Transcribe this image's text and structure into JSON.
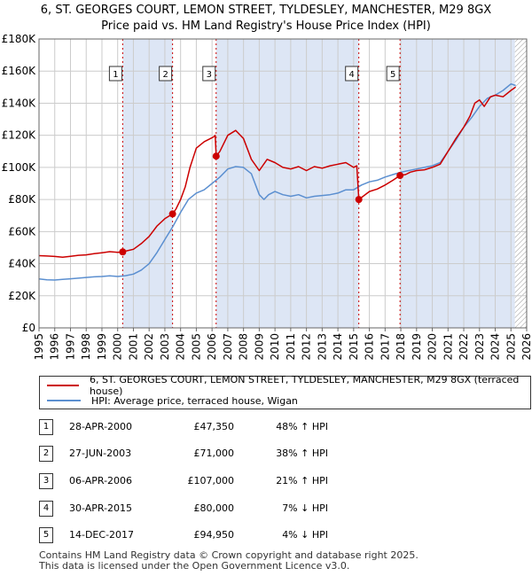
{
  "header": {
    "title_line1": "6, ST. GEORGES COURT, LEMON STREET, TYLDESLEY, MANCHESTER, M29 8GX",
    "title_line2": "Price paid vs. HM Land Registry's House Price Index (HPI)"
  },
  "colors": {
    "property_line": "#cc0000",
    "hpi_line": "#5b8fd0",
    "shade": "#dde6f5",
    "grid": "#cccccc"
  },
  "chart_data": {
    "type": "line",
    "x_range": [
      1995,
      2026
    ],
    "ylim": [
      0,
      180000
    ],
    "y_ticks": [
      0,
      20000,
      40000,
      60000,
      80000,
      100000,
      120000,
      140000,
      160000,
      180000
    ],
    "y_tick_labels": [
      "£0",
      "£20K",
      "£40K",
      "£60K",
      "£80K",
      "£100K",
      "£120K",
      "£140K",
      "£160K",
      "£180K"
    ],
    "x_tick_labels": [
      "1995",
      "1996",
      "1997",
      "1998",
      "1999",
      "2000",
      "2001",
      "2002",
      "2003",
      "2004",
      "2005",
      "2006",
      "2007",
      "2008",
      "2009",
      "2010",
      "2011",
      "2012",
      "2013",
      "2014",
      "2015",
      "2016",
      "2017",
      "2018",
      "2019",
      "2020",
      "2021",
      "2022",
      "2023",
      "2024",
      "2025",
      "2026"
    ],
    "shaded_ranges": [
      [
        2000.32,
        2003.49
      ],
      [
        2006.26,
        2015.33
      ],
      [
        2017.95,
        2025.25
      ]
    ],
    "hatched_from": 2025.25,
    "series": [
      {
        "name": "6, ST. GEORGES COURT, LEMON STREET, TYLDESLEY, MANCHESTER, M29 8GX (terraced house)",
        "x": [
          1995,
          1995.5,
          1996,
          1996.5,
          1997,
          1997.5,
          1998,
          1998.5,
          1999,
          1999.5,
          2000,
          2000.32,
          2000.5,
          2001,
          2001.5,
          2002,
          2002.5,
          2003,
          2003.49,
          2003.7,
          2004,
          2004.3,
          2004.6,
          2005,
          2005.5,
          2005.9,
          2006.1,
          2006.2,
          2006.26,
          2006.5,
          2007,
          2007.5,
          2008,
          2008.5,
          2009,
          2009.5,
          2010,
          2010.5,
          2011,
          2011.5,
          2012,
          2012.5,
          2013,
          2013.5,
          2014,
          2014.5,
          2015,
          2015.2,
          2015.33,
          2015.6,
          2016,
          2016.5,
          2017,
          2017.5,
          2017.95,
          2018.3,
          2018.6,
          2019,
          2019.5,
          2020,
          2020.5,
          2021,
          2021.5,
          2022,
          2022.4,
          2022.7,
          2023,
          2023.3,
          2023.7,
          2024,
          2024.5,
          2025,
          2025.3
        ],
        "y": [
          45000,
          44800,
          44500,
          44000,
          44600,
          45200,
          45500,
          46200,
          46800,
          47500,
          47100,
          47350,
          47800,
          49000,
          52500,
          57000,
          63500,
          68000,
          71000,
          74000,
          80000,
          88000,
          100000,
          112000,
          116000,
          118000,
          119000,
          120000,
          107000,
          110000,
          120000,
          123000,
          118000,
          105000,
          98000,
          105000,
          103000,
          100000,
          99000,
          100500,
          98000,
          100500,
          99500,
          101000,
          102000,
          103000,
          100000,
          101000,
          80000,
          82000,
          85000,
          86500,
          89000,
          92000,
          94950,
          95500,
          97000,
          98000,
          98500,
          100000,
          102000,
          110000,
          118000,
          125000,
          132000,
          140000,
          142000,
          138000,
          144000,
          145000,
          144000,
          148000,
          150000
        ]
      },
      {
        "name": "HPI: Average price, terraced house, Wigan",
        "x": [
          1995,
          1995.5,
          1996,
          1996.5,
          1997,
          1997.5,
          1998,
          1998.5,
          1999,
          1999.5,
          2000,
          2000.5,
          2001,
          2001.5,
          2002,
          2002.5,
          2003,
          2003.5,
          2004,
          2004.5,
          2005,
          2005.5,
          2006,
          2006.5,
          2007,
          2007.5,
          2008,
          2008.5,
          2009,
          2009.3,
          2009.6,
          2010,
          2010.5,
          2011,
          2011.5,
          2012,
          2012.5,
          2013,
          2013.5,
          2014,
          2014.5,
          2015,
          2015.5,
          2016,
          2016.5,
          2017,
          2017.5,
          2018,
          2018.5,
          2019,
          2019.5,
          2020,
          2020.5,
          2021,
          2021.5,
          2022,
          2022.5,
          2023,
          2023.5,
          2024,
          2024.5,
          2025,
          2025.3
        ],
        "y": [
          30500,
          30000,
          29800,
          30200,
          30600,
          31000,
          31400,
          31800,
          32000,
          32400,
          32000,
          32500,
          33500,
          36000,
          40000,
          47000,
          55000,
          63000,
          72000,
          80000,
          84000,
          86000,
          90000,
          94000,
          99000,
          100500,
          100000,
          96000,
          83000,
          80000,
          83000,
          85000,
          83000,
          82000,
          83000,
          81000,
          82000,
          82500,
          83000,
          84000,
          86000,
          86000,
          89000,
          91000,
          92000,
          94000,
          95500,
          97000,
          98000,
          99000,
          100000,
          101000,
          103000,
          110000,
          117000,
          125000,
          131000,
          138000,
          143000,
          145000,
          148000,
          152000,
          151000
        ]
      }
    ],
    "sales": [
      {
        "id": "1",
        "x": 2000.32,
        "y": 47350
      },
      {
        "id": "2",
        "x": 2003.49,
        "y": 71000
      },
      {
        "id": "3",
        "x": 2006.26,
        "y": 107000
      },
      {
        "id": "4",
        "x": 2015.33,
        "y": 80000
      },
      {
        "id": "5",
        "x": 2017.95,
        "y": 94950
      }
    ]
  },
  "legend": {
    "property": "6, ST. GEORGES COURT, LEMON STREET, TYLDESLEY, MANCHESTER, M29 8GX (terraced house)",
    "hpi": "HPI: Average price, terraced house, Wigan"
  },
  "sales_table": [
    {
      "num": "1",
      "date": "28-APR-2000",
      "price": "£47,350",
      "pct": "48% ↑ HPI"
    },
    {
      "num": "2",
      "date": "27-JUN-2003",
      "price": "£71,000",
      "pct": "38% ↑ HPI"
    },
    {
      "num": "3",
      "date": "06-APR-2006",
      "price": "£107,000",
      "pct": "21% ↑ HPI"
    },
    {
      "num": "4",
      "date": "30-APR-2015",
      "price": "£80,000",
      "pct": "7% ↓ HPI"
    },
    {
      "num": "5",
      "date": "14-DEC-2017",
      "price": "£94,950",
      "pct": "4% ↓ HPI"
    }
  ],
  "footer": {
    "line1": "Contains HM Land Registry data © Crown copyright and database right 2025.",
    "line2": "This data is licensed under the Open Government Licence v3.0."
  }
}
